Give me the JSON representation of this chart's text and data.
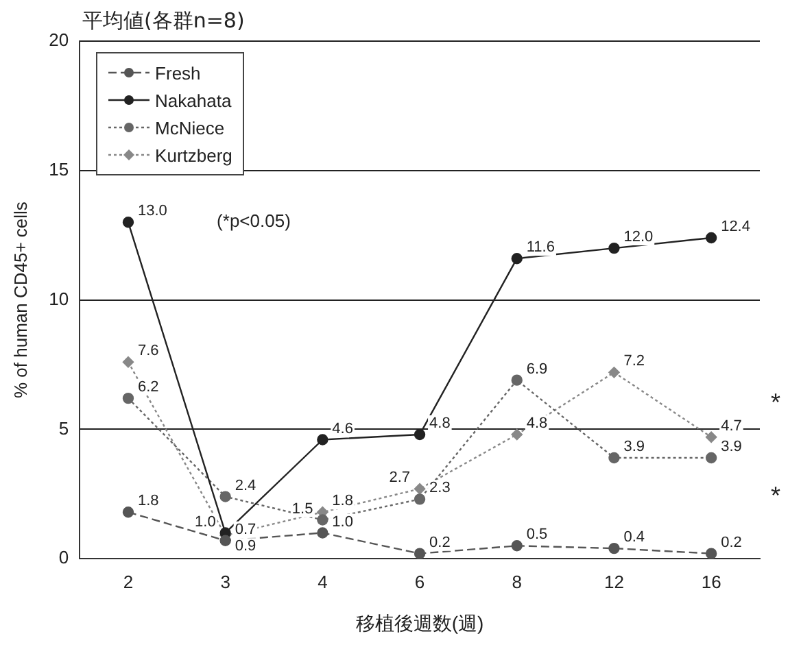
{
  "chart_data": {
    "type": "line",
    "title": "平均値(各群n=8)",
    "xlabel": "移植後週数(週)",
    "ylabel": "% of human CD45+ cells",
    "categories": [
      "2",
      "3",
      "4",
      "6",
      "8",
      "12",
      "16"
    ],
    "series": [
      {
        "name": "Fresh",
        "color": "#555555",
        "line_style": "dashed",
        "values": [
          1.8,
          0.7,
          1.0,
          0.2,
          0.5,
          0.4,
          0.2
        ],
        "value_labels": [
          "1.8",
          "0.7",
          "1.0",
          "0.2",
          "0.5",
          "0.4",
          "0.2"
        ]
      },
      {
        "name": "Nakahata",
        "color": "#222222",
        "line_style": "solid",
        "values": [
          13.0,
          1.0,
          4.6,
          4.8,
          11.6,
          12.0,
          12.4
        ],
        "value_labels": [
          "13.0",
          "1.0",
          "4.6",
          "4.8",
          "11.6",
          "12.0",
          "12.4"
        ]
      },
      {
        "name": "McNiece",
        "color": "#666666",
        "line_style": "dotted",
        "values": [
          6.2,
          2.4,
          1.5,
          2.3,
          6.9,
          3.9,
          3.9
        ],
        "value_labels": [
          "6.2",
          "2.4",
          "1.5",
          "2.3",
          "6.9",
          "3.9",
          "3.9"
        ]
      },
      {
        "name": "Kurtzberg",
        "color": "#888888",
        "line_style": "dotted",
        "marker": "diamond",
        "values": [
          7.6,
          0.9,
          1.8,
          2.7,
          4.8,
          7.2,
          4.7
        ],
        "value_labels": [
          "7.6",
          "0.9",
          "1.8",
          "2.7",
          "4.8",
          "7.2",
          "4.7"
        ]
      }
    ],
    "ylim": [
      0,
      20
    ],
    "yticks": [
      0,
      5,
      10,
      15,
      20
    ],
    "grid": "y",
    "legend": "top left",
    "marker": "circle",
    "annotations": [
      "(*p<0.05)",
      "*",
      "*"
    ]
  }
}
